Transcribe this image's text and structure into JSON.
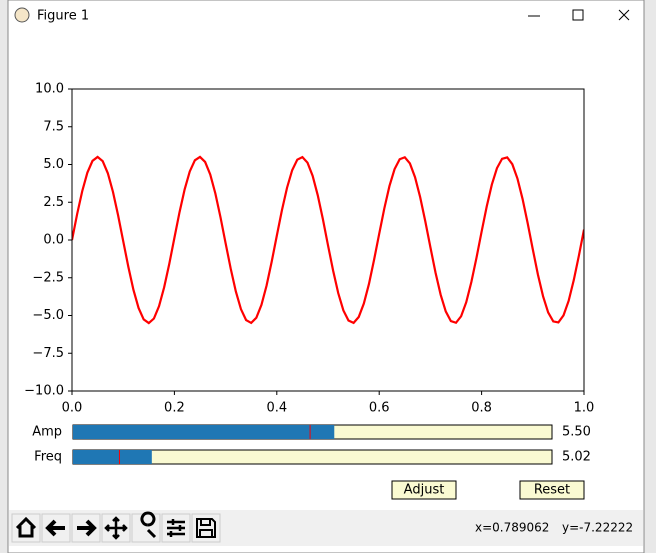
{
  "window": {
    "title": "Figure 1"
  },
  "chart_data": {
    "type": "line",
    "x": [
      0,
      0.01,
      0.02,
      0.03,
      0.04,
      0.05,
      0.06,
      0.07,
      0.08,
      0.09,
      0.1,
      0.11,
      0.12,
      0.13,
      0.14,
      0.15,
      0.16,
      0.17,
      0.18,
      0.19,
      0.2,
      0.21,
      0.22,
      0.23,
      0.24,
      0.25,
      0.26,
      0.27,
      0.28,
      0.29,
      0.3,
      0.31,
      0.32,
      0.33,
      0.34,
      0.35,
      0.36,
      0.37,
      0.38,
      0.39,
      0.4,
      0.41,
      0.42,
      0.43,
      0.44,
      0.45,
      0.46,
      0.47,
      0.48,
      0.49,
      0.5,
      0.51,
      0.52,
      0.53,
      0.54,
      0.55,
      0.56,
      0.57,
      0.58,
      0.59,
      0.6,
      0.61,
      0.62,
      0.63,
      0.64,
      0.65,
      0.66,
      0.67,
      0.68,
      0.69,
      0.7,
      0.71,
      0.72,
      0.73,
      0.74,
      0.75,
      0.76,
      0.77,
      0.78,
      0.79,
      0.8,
      0.81,
      0.82,
      0.83,
      0.84,
      0.85,
      0.86,
      0.87,
      0.88,
      0.89,
      0.9,
      0.91,
      0.92,
      0.93,
      0.94,
      0.95,
      0.96,
      0.97,
      0.98,
      0.99,
      1
    ],
    "series": [
      {
        "color": "#ff0000",
        "values": [
          0,
          1.71,
          3.24,
          4.46,
          5.24,
          5.5,
          5.22,
          4.42,
          3.19,
          1.64,
          -0.07,
          -1.77,
          -3.3,
          -4.5,
          -5.26,
          -5.5,
          -5.2,
          -4.38,
          -3.13,
          -1.58,
          0.14,
          1.84,
          3.35,
          4.54,
          5.28,
          5.5,
          5.17,
          4.34,
          3.08,
          1.51,
          -0.21,
          -1.9,
          -3.41,
          -4.58,
          -5.3,
          -5.49,
          -5.15,
          -4.3,
          -3.02,
          -1.44,
          0.28,
          1.97,
          3.46,
          4.62,
          5.32,
          5.49,
          5.12,
          4.25,
          2.96,
          1.38,
          -0.35,
          -2.03,
          -3.52,
          -4.66,
          -5.33,
          -5.49,
          -5.1,
          -4.21,
          -2.91,
          -1.31,
          0.41,
          2.09,
          3.57,
          4.69,
          5.35,
          5.48,
          5.07,
          4.16,
          2.84,
          1.24,
          -0.48,
          -2.16,
          -3.62,
          -4.73,
          -5.37,
          -5.48,
          -5.05,
          -4.12,
          -2.78,
          -1.18,
          0.55,
          2.22,
          3.67,
          4.76,
          5.38,
          5.47,
          5.02,
          4.07,
          2.72,
          1.11,
          -0.62,
          -2.29,
          -3.72,
          -4.8,
          -5.39,
          -5.46,
          -4.99,
          -4.03,
          -2.66,
          -1.04,
          0.69
        ]
      }
    ],
    "xlim": [
      0,
      1
    ],
    "xticks": [
      {
        "value": 0,
        "label": "0.0"
      },
      {
        "value": 0.2,
        "label": "0.2"
      },
      {
        "value": 0.4,
        "label": "0.4"
      },
      {
        "value": 0.6,
        "label": "0.6"
      },
      {
        "value": 0.8,
        "label": "0.8"
      },
      {
        "value": 1,
        "label": "1.0"
      }
    ],
    "ylim": [
      -10,
      10
    ],
    "yticks": [
      {
        "value": -10,
        "label": "−10.0"
      },
      {
        "value": -7.5,
        "label": "−7.5"
      },
      {
        "value": -5,
        "label": "−5.0"
      },
      {
        "value": -2.5,
        "label": "−2.5"
      },
      {
        "value": 0,
        "label": "0.0"
      },
      {
        "value": 2.5,
        "label": "2.5"
      },
      {
        "value": 5,
        "label": "5.0"
      },
      {
        "value": 7.5,
        "label": "7.5"
      },
      {
        "value": 10,
        "label": "10.0"
      }
    ]
  },
  "sliders": [
    {
      "label": "Amp",
      "value": 5.5,
      "value_label": "5.50",
      "valinit": 5,
      "range": [
        0.1,
        10
      ]
    },
    {
      "label": "Freq",
      "value": 5.02,
      "value_label": "5.02",
      "valinit": 3,
      "range": [
        0.1,
        30
      ]
    }
  ],
  "buttons": [
    "Adjust",
    "Reset"
  ],
  "status": {
    "x": "x=0.789062",
    "y": "y=-7.22222"
  }
}
